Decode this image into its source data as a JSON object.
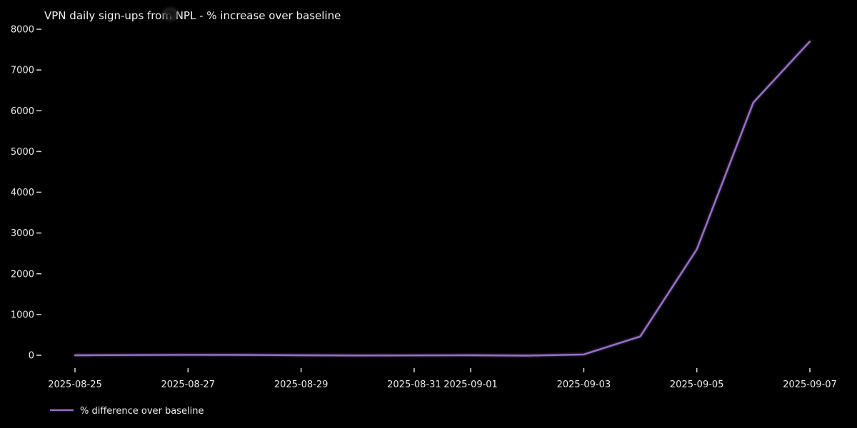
{
  "page": {
    "background_color": "#000000",
    "text_color": "#eaeaea"
  },
  "chart_data": {
    "type": "line",
    "title": "VPN daily sign-ups from NPL - % increase over baseline",
    "xlabel": "",
    "ylabel": "",
    "x": [
      "2025-08-25",
      "2025-08-26",
      "2025-08-27",
      "2025-08-28",
      "2025-08-29",
      "2025-08-30",
      "2025-08-31",
      "2025-09-01",
      "2025-09-02",
      "2025-09-03",
      "2025-09-04",
      "2025-09-05",
      "2025-09-06",
      "2025-09-07"
    ],
    "series": [
      {
        "name": "% difference over baseline",
        "color": "#9a6fc9",
        "values": [
          0,
          5,
          10,
          8,
          0,
          -5,
          -3,
          0,
          -8,
          20,
          460,
          2600,
          6200,
          7700
        ]
      }
    ],
    "xtick_labels": [
      "2025-08-25",
      "2025-08-27",
      "2025-08-29",
      "2025-08-31",
      "2025-09-01",
      "2025-09-03",
      "2025-09-05",
      "2025-09-07"
    ],
    "ytick_values": [
      0,
      1000,
      2000,
      3000,
      4000,
      5000,
      6000,
      7000,
      8000
    ],
    "ylim": [
      0,
      8000
    ],
    "grid": false,
    "legend_position": "lower-left",
    "colors": {
      "background": "#000000",
      "text": "#eaeaea",
      "tick": "#cfcfcf"
    }
  }
}
